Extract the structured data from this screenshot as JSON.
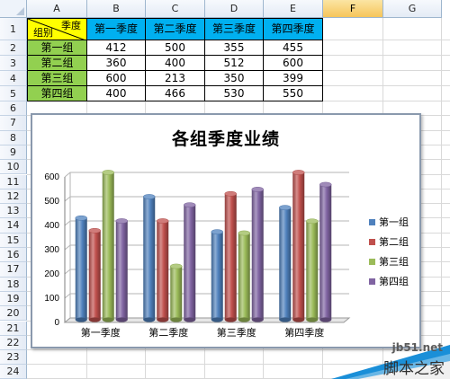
{
  "columns": [
    "A",
    "B",
    "C",
    "D",
    "E",
    "F",
    "G"
  ],
  "selected_column": "F",
  "rows": [
    "1",
    "2",
    "3",
    "4",
    "5",
    "6",
    "7",
    "8",
    "9",
    "10",
    "11",
    "12",
    "13",
    "14",
    "15",
    "16",
    "17",
    "18",
    "19",
    "20",
    "21",
    "22",
    "23",
    "24"
  ],
  "table": {
    "corner_top": "季度",
    "corner_bottom": "组别",
    "headers": [
      "第一季度",
      "第二季度",
      "第三季度",
      "第四季度"
    ],
    "groups": [
      "第一组",
      "第二组",
      "第三组",
      "第四组"
    ],
    "values": [
      [
        "412",
        "500",
        "355",
        "455"
      ],
      [
        "360",
        "400",
        "512",
        "600"
      ],
      [
        "600",
        "213",
        "350",
        "399"
      ],
      [
        "400",
        "466",
        "530",
        "550"
      ]
    ]
  },
  "chart_data": {
    "type": "bar",
    "title": "各组季度业绩",
    "categories": [
      "第一季度",
      "第二季度",
      "第三季度",
      "第四季度"
    ],
    "series": [
      {
        "name": "第一组",
        "values": [
          412,
          500,
          355,
          455
        ],
        "color": "#4f81bd"
      },
      {
        "name": "第二组",
        "values": [
          360,
          400,
          512,
          600
        ],
        "color": "#c0504d"
      },
      {
        "name": "第三组",
        "values": [
          600,
          213,
          350,
          399
        ],
        "color": "#9bbb59"
      },
      {
        "name": "第四组",
        "values": [
          400,
          466,
          530,
          550
        ],
        "color": "#8064a2"
      }
    ],
    "yticks": [
      "0",
      "100",
      "200",
      "300",
      "400",
      "500",
      "600"
    ],
    "ylim": [
      0,
      600
    ],
    "grid": true,
    "legend": "right",
    "style": "3d-cylinder"
  },
  "watermark": {
    "url": "jb51.net",
    "text": "脚本之家"
  }
}
